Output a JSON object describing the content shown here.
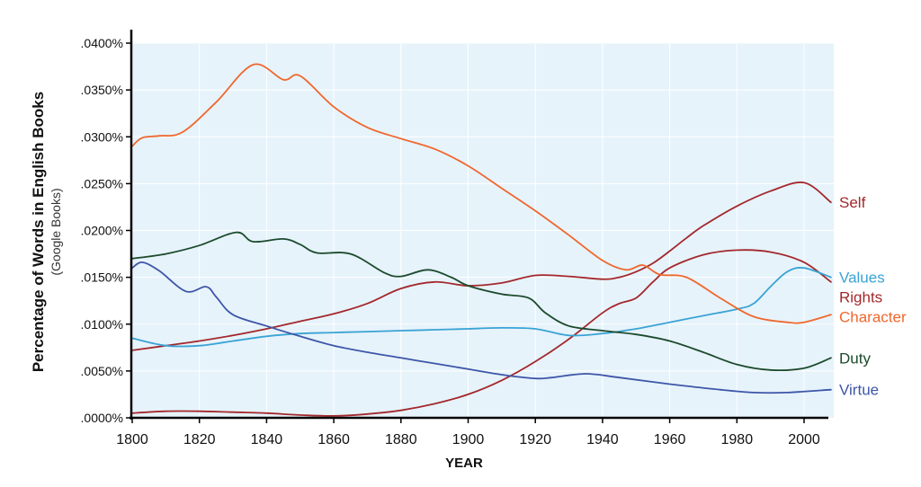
{
  "chart_data": {
    "type": "line",
    "ylabel": "Percentage of Words in English Books",
    "ylabel_sub": "(Google Books)",
    "xlabel": "YEAR",
    "xlim": [
      1800,
      2008
    ],
    "ylim": [
      0,
      0.04
    ],
    "x_ticks": [
      "1800",
      "1820",
      "1840",
      "1860",
      "1880",
      "1900",
      "1920",
      "1940",
      "1960",
      "1980",
      "2000"
    ],
    "y_ticks": [
      ".0000%",
      ".0050%",
      ".0100%",
      ".0150%",
      ".0200%",
      ".0250%",
      ".0300%",
      ".0350%",
      ".0400%"
    ],
    "background": "#e6f3fb",
    "grid": true,
    "legend_placement": "right, at line ends",
    "series": [
      {
        "name": "Self",
        "color": "#a3282c",
        "x": [
          1800,
          1810,
          1820,
          1830,
          1840,
          1850,
          1860,
          1870,
          1880,
          1890,
          1900,
          1910,
          1920,
          1930,
          1940,
          1945,
          1950,
          1955,
          1960,
          1965,
          1970,
          1980,
          1990,
          2000,
          2008
        ],
        "y": [
          0.0072,
          0.0077,
          0.0082,
          0.0088,
          0.0095,
          0.0103,
          0.0111,
          0.0122,
          0.0138,
          0.0145,
          0.0141,
          0.0144,
          0.0152,
          0.0151,
          0.0148,
          0.015,
          0.0156,
          0.0165,
          0.0178,
          0.0192,
          0.0205,
          0.0226,
          0.0242,
          0.0251,
          0.023
        ]
      },
      {
        "name": "Rights",
        "color": "#a3282c",
        "x": [
          1800,
          1810,
          1820,
          1830,
          1840,
          1850,
          1860,
          1870,
          1880,
          1890,
          1900,
          1910,
          1920,
          1930,
          1940,
          1945,
          1950,
          1955,
          1960,
          1970,
          1980,
          1990,
          2000,
          2008
        ],
        "y": [
          0.0005,
          0.0007,
          0.0007,
          0.0006,
          0.0005,
          0.0003,
          0.0002,
          0.0004,
          0.0008,
          0.0015,
          0.0025,
          0.004,
          0.006,
          0.0084,
          0.0112,
          0.0122,
          0.0128,
          0.0145,
          0.016,
          0.0174,
          0.0179,
          0.0177,
          0.0166,
          0.0145
        ]
      },
      {
        "name": "Values",
        "color": "#3aa3d4",
        "x": [
          1800,
          1810,
          1820,
          1830,
          1840,
          1850,
          1860,
          1870,
          1880,
          1890,
          1900,
          1910,
          1920,
          1930,
          1940,
          1950,
          1960,
          1970,
          1980,
          1985,
          1990,
          1995,
          2000,
          2008
        ],
        "y": [
          0.0085,
          0.0077,
          0.0077,
          0.0082,
          0.0087,
          0.009,
          0.0091,
          0.0092,
          0.0093,
          0.0094,
          0.0095,
          0.0096,
          0.0095,
          0.0088,
          0.009,
          0.0095,
          0.0102,
          0.0109,
          0.0116,
          0.0122,
          0.014,
          0.0156,
          0.016,
          0.015
        ]
      },
      {
        "name": "Character",
        "color": "#f0672d",
        "x": [
          1800,
          1803,
          1808,
          1815,
          1825,
          1836,
          1845,
          1850,
          1860,
          1870,
          1880,
          1890,
          1900,
          1910,
          1920,
          1930,
          1940,
          1947,
          1952,
          1957,
          1965,
          1975,
          1985,
          1995,
          2000,
          2008
        ],
        "y": [
          0.029,
          0.0299,
          0.0301,
          0.0305,
          0.0337,
          0.0377,
          0.0361,
          0.0365,
          0.0332,
          0.031,
          0.0298,
          0.0287,
          0.0269,
          0.0245,
          0.0221,
          0.0195,
          0.0168,
          0.0158,
          0.0163,
          0.0153,
          0.015,
          0.0128,
          0.0108,
          0.0102,
          0.0102,
          0.011
        ]
      },
      {
        "name": "Duty",
        "color": "#1c4a2c",
        "x": [
          1800,
          1810,
          1820,
          1831,
          1836,
          1845,
          1850,
          1855,
          1865,
          1875,
          1880,
          1888,
          1895,
          1900,
          1910,
          1918,
          1923,
          1930,
          1940,
          1950,
          1960,
          1970,
          1980,
          1990,
          2000,
          2008
        ],
        "y": [
          0.017,
          0.0175,
          0.0184,
          0.0198,
          0.0188,
          0.0191,
          0.0185,
          0.0176,
          0.0175,
          0.0155,
          0.0151,
          0.0158,
          0.015,
          0.0141,
          0.0132,
          0.0128,
          0.0112,
          0.0098,
          0.0093,
          0.0089,
          0.0082,
          0.007,
          0.0057,
          0.0051,
          0.0053,
          0.0064
        ]
      },
      {
        "name": "Virtue",
        "color": "#3e56a8",
        "x": [
          1800,
          1803,
          1808,
          1816,
          1822,
          1825,
          1830,
          1840,
          1850,
          1860,
          1870,
          1880,
          1890,
          1900,
          1910,
          1920,
          1925,
          1935,
          1945,
          1960,
          1975,
          1985,
          1995,
          2008
        ],
        "y": [
          0.016,
          0.0166,
          0.0157,
          0.0135,
          0.014,
          0.0129,
          0.011,
          0.0098,
          0.0087,
          0.0077,
          0.007,
          0.0064,
          0.0058,
          0.0052,
          0.0046,
          0.0042,
          0.0043,
          0.0047,
          0.0043,
          0.0036,
          0.003,
          0.0027,
          0.0027,
          0.003
        ]
      }
    ]
  }
}
